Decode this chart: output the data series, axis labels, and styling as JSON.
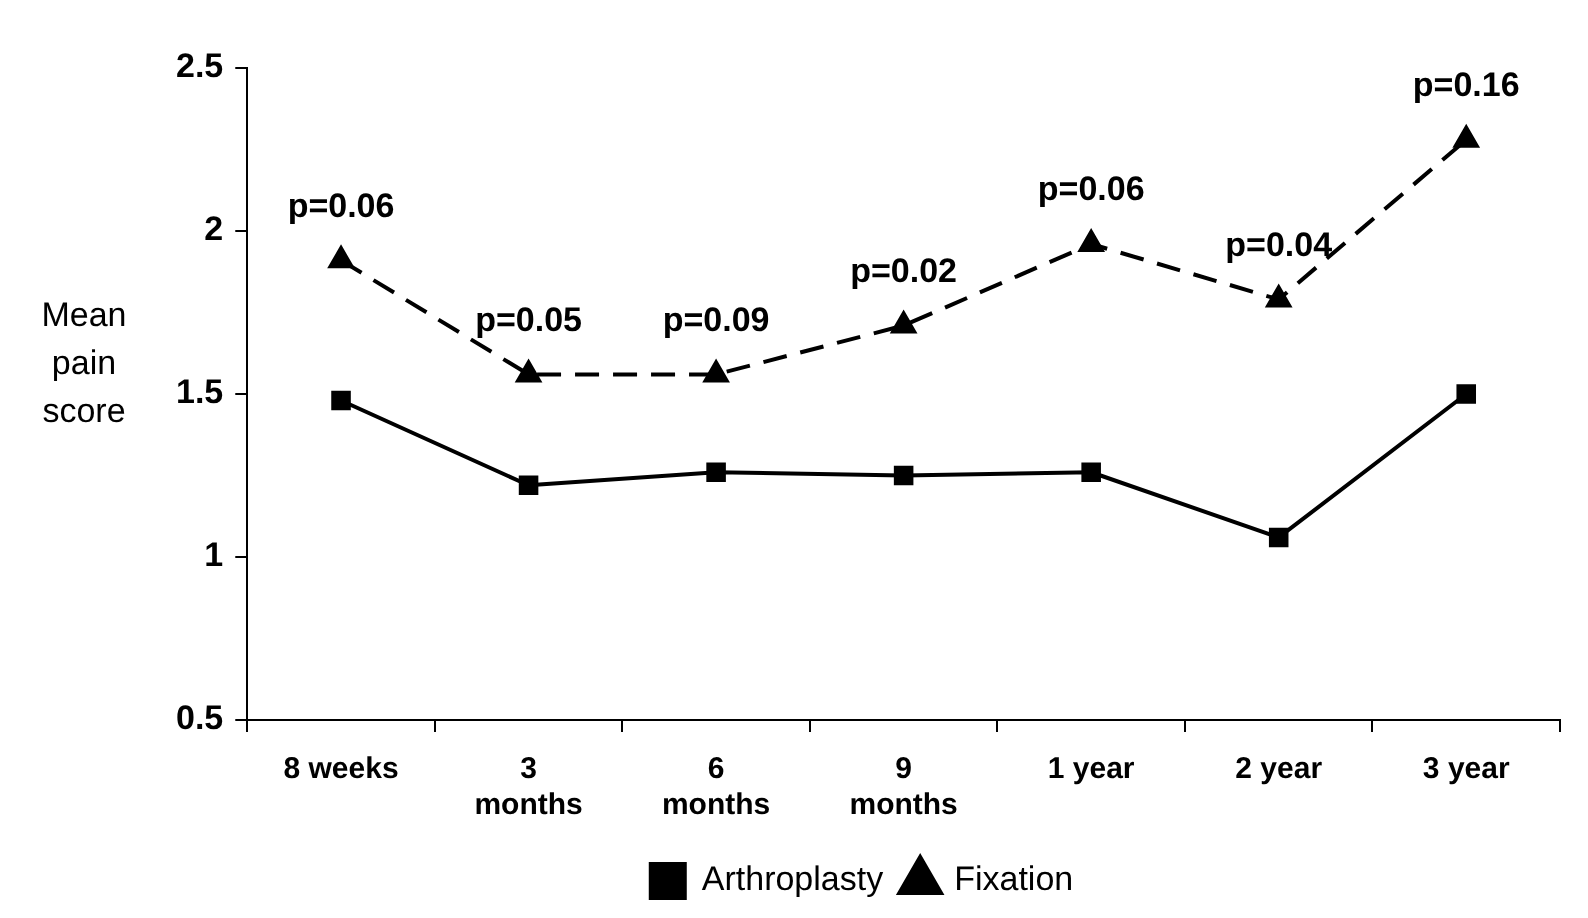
{
  "chart_data": {
    "type": "line",
    "ylabel": "Mean pain score",
    "categories": [
      "8 weeks",
      "3 months",
      "6 months",
      "9 months",
      "1 year",
      "2 year",
      "3 year"
    ],
    "series": [
      {
        "name": "Arthroplasty",
        "color": "#000000",
        "marker": "square",
        "line_style": "solid",
        "values": [
          1.48,
          1.22,
          1.26,
          1.25,
          1.26,
          1.06,
          1.5
        ]
      },
      {
        "name": "Fixation",
        "color": "#000000",
        "marker": "triangle",
        "line_style": "dashed",
        "values": [
          1.91,
          1.56,
          1.56,
          1.71,
          1.96,
          1.79,
          2.28
        ]
      }
    ],
    "ylim": [
      0.5,
      2.5
    ],
    "yticks": [
      0.5,
      1,
      1.5,
      2,
      2.5
    ],
    "grid": false,
    "legend": "bottom",
    "annotations": [
      {
        "text": "p=0.06",
        "x": "8 weeks",
        "y": 1.91
      },
      {
        "text": "p=0.05",
        "x": "3 months",
        "y": 1.56
      },
      {
        "text": "p=0.09",
        "x": "6 months",
        "y": 1.56
      },
      {
        "text": "p=0.02",
        "x": "9 months",
        "y": 1.71
      },
      {
        "text": "p=0.06",
        "x": "1 year",
        "y": 1.96
      },
      {
        "text": "p=0.04",
        "x": "2 year",
        "y": 1.79
      },
      {
        "text": "p=0.16",
        "x": "3 year",
        "y": 2.28
      }
    ]
  }
}
